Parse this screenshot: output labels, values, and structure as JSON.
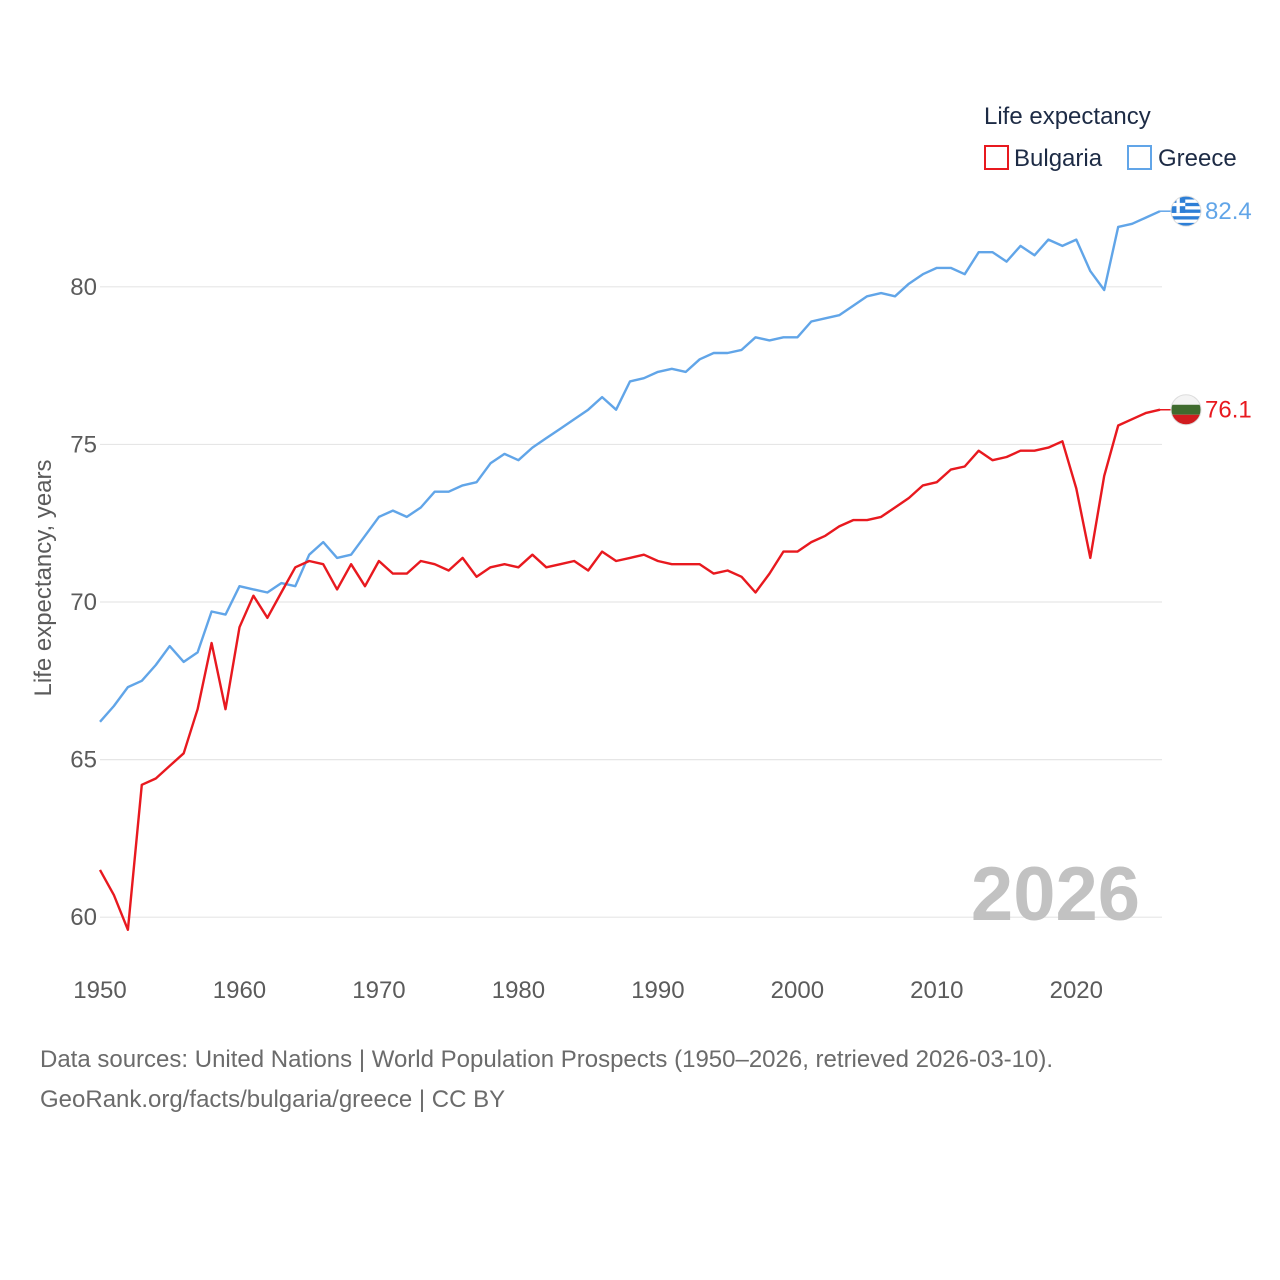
{
  "chart_data": {
    "type": "line",
    "title": "",
    "legend_title": "Life expectancy",
    "ylabel": "Life expectancy, years",
    "xlabel": "",
    "xlim": [
      1950,
      2026
    ],
    "ylim": [
      58.8,
      84.5
    ],
    "x_ticks": [
      1950,
      1960,
      1970,
      1980,
      1990,
      2000,
      2010,
      2020
    ],
    "y_ticks": [
      60,
      65,
      70,
      75,
      80
    ],
    "current_year": "2026",
    "legend_position": "top-right",
    "series": [
      {
        "name": "Bulgaria",
        "color": "#e8191f",
        "end_label": "76.1",
        "flag": "bulgaria-flag",
        "x": [
          1950,
          1951,
          1952,
          1953,
          1954,
          1955,
          1956,
          1957,
          1958,
          1959,
          1960,
          1961,
          1962,
          1963,
          1964,
          1965,
          1966,
          1967,
          1968,
          1969,
          1970,
          1971,
          1972,
          1973,
          1974,
          1975,
          1976,
          1977,
          1978,
          1979,
          1980,
          1981,
          1982,
          1983,
          1984,
          1985,
          1986,
          1987,
          1988,
          1989,
          1990,
          1991,
          1992,
          1993,
          1994,
          1995,
          1996,
          1997,
          1998,
          1999,
          2000,
          2001,
          2002,
          2003,
          2004,
          2005,
          2006,
          2007,
          2008,
          2009,
          2010,
          2011,
          2012,
          2013,
          2014,
          2015,
          2016,
          2017,
          2018,
          2019,
          2020,
          2021,
          2022,
          2023,
          2024,
          2025,
          2026
        ],
        "values": [
          61.5,
          60.7,
          59.6,
          64.2,
          64.4,
          64.8,
          65.2,
          66.6,
          68.7,
          66.6,
          69.2,
          70.2,
          69.5,
          70.3,
          71.1,
          71.3,
          71.2,
          70.4,
          71.2,
          70.5,
          71.3,
          70.9,
          70.9,
          71.3,
          71.2,
          71.0,
          71.4,
          70.8,
          71.1,
          71.2,
          71.1,
          71.5,
          71.1,
          71.2,
          71.3,
          71.0,
          71.6,
          71.3,
          71.4,
          71.5,
          71.3,
          71.2,
          71.2,
          71.2,
          70.9,
          71.0,
          70.8,
          70.3,
          70.9,
          71.6,
          71.6,
          71.9,
          72.1,
          72.4,
          72.6,
          72.6,
          72.7,
          73.0,
          73.3,
          73.7,
          73.8,
          74.2,
          74.3,
          74.8,
          74.5,
          74.6,
          74.8,
          74.8,
          74.9,
          75.1,
          73.6,
          71.4,
          74.0,
          75.6,
          75.8,
          76.0,
          76.1
        ]
      },
      {
        "name": "Greece",
        "color": "#61a5e8",
        "end_label": "82.4",
        "flag": "greece-flag",
        "x": [
          1950,
          1951,
          1952,
          1953,
          1954,
          1955,
          1956,
          1957,
          1958,
          1959,
          1960,
          1961,
          1962,
          1963,
          1964,
          1965,
          1966,
          1967,
          1968,
          1969,
          1970,
          1971,
          1972,
          1973,
          1974,
          1975,
          1976,
          1977,
          1978,
          1979,
          1980,
          1981,
          1982,
          1983,
          1984,
          1985,
          1986,
          1987,
          1988,
          1989,
          1990,
          1991,
          1992,
          1993,
          1994,
          1995,
          1996,
          1997,
          1998,
          1999,
          2000,
          2001,
          2002,
          2003,
          2004,
          2005,
          2006,
          2007,
          2008,
          2009,
          2010,
          2011,
          2012,
          2013,
          2014,
          2015,
          2016,
          2017,
          2018,
          2019,
          2020,
          2021,
          2022,
          2023,
          2024,
          2025,
          2026
        ],
        "values": [
          66.2,
          66.7,
          67.3,
          67.5,
          68.0,
          68.6,
          68.1,
          68.4,
          69.7,
          69.6,
          70.5,
          70.4,
          70.3,
          70.6,
          70.5,
          71.5,
          71.9,
          71.4,
          71.5,
          72.1,
          72.7,
          72.9,
          72.7,
          73.0,
          73.5,
          73.5,
          73.7,
          73.8,
          74.4,
          74.7,
          74.5,
          74.9,
          75.2,
          75.5,
          75.8,
          76.1,
          76.5,
          76.1,
          77.0,
          77.1,
          77.3,
          77.4,
          77.3,
          77.7,
          77.9,
          77.9,
          78.0,
          78.4,
          78.3,
          78.4,
          78.4,
          78.9,
          79.0,
          79.1,
          79.4,
          79.7,
          79.8,
          79.7,
          80.1,
          80.4,
          80.6,
          80.6,
          80.4,
          81.1,
          81.1,
          80.8,
          81.3,
          81.0,
          81.5,
          81.3,
          81.5,
          80.5,
          79.9,
          81.9,
          82.0,
          82.2,
          82.4
        ]
      }
    ]
  },
  "footer": {
    "line1": "Data sources: United Nations | World Population Prospects (1950–2026, retrieved 2026-03-10).",
    "line2": "GeoRank.org/facts/bulgaria/greece | CC BY"
  }
}
